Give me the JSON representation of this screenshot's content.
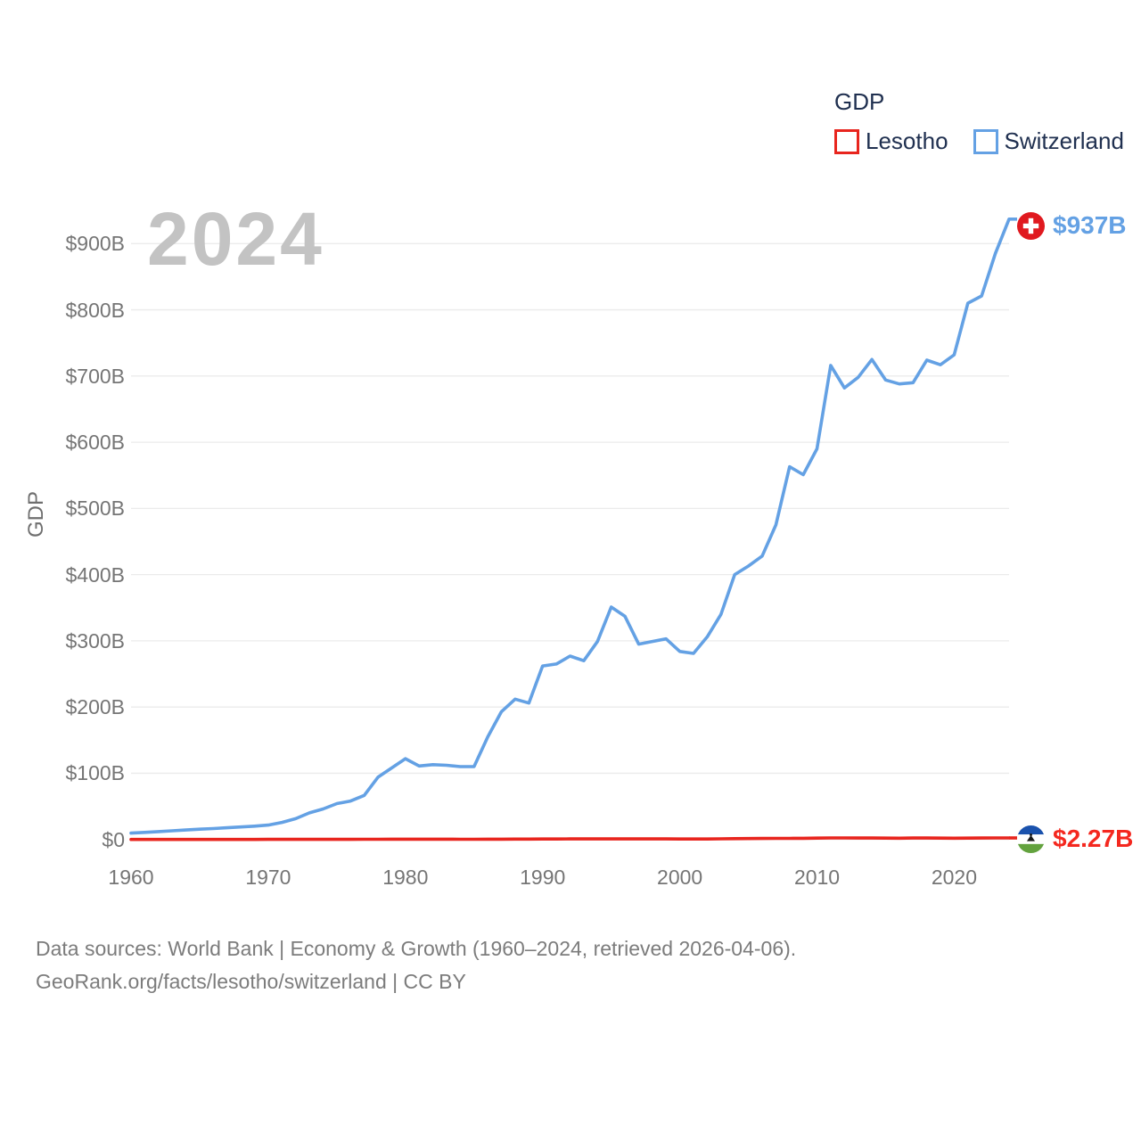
{
  "legend": {
    "title": "GDP",
    "items": [
      {
        "label": "Lesotho",
        "color": "#e8251e"
      },
      {
        "label": "Switzerland",
        "color": "#64a1e4"
      }
    ]
  },
  "watermark_year": "2024",
  "y_axis": {
    "title": "GDP"
  },
  "series_end_labels": {
    "switzerland": "$937B",
    "lesotho": "$2.27B"
  },
  "footer": {
    "line1": "Data sources: World Bank | Economy & Growth (1960–2024, retrieved 2026-04-06).",
    "line2": "GeoRank.org/facts/lesotho/switzerland | CC BY"
  },
  "colors": {
    "switzerland_line": "#64a1e4",
    "lesotho_line": "#e8251e",
    "switzerland_label": "#64a1e4",
    "lesotho_label": "#f4281f",
    "grid": "#ebebeb",
    "axis_text": "#757575",
    "legend_text": "#203050",
    "watermark": "#c3c3c3",
    "footer_text": "#7c7c7c"
  },
  "chart_data": {
    "type": "line",
    "title": "GDP",
    "ylabel": "GDP",
    "x_range": [
      1960,
      2024
    ],
    "ylim_billions": [
      0,
      950
    ],
    "grid": true,
    "legend_position": "top-right",
    "x_ticks": [
      1960,
      1970,
      1980,
      1990,
      2000,
      2010,
      2020
    ],
    "y_ticks": [
      0,
      100,
      200,
      300,
      400,
      500,
      600,
      700,
      800,
      900
    ],
    "y_tick_labels": [
      "$0",
      "$100B",
      "$200B",
      "$300B",
      "$400B",
      "$500B",
      "$600B",
      "$700B",
      "$800B",
      "$900B"
    ],
    "x": [
      1960,
      1961,
      1962,
      1963,
      1964,
      1965,
      1966,
      1967,
      1968,
      1969,
      1970,
      1971,
      1972,
      1973,
      1974,
      1975,
      1976,
      1977,
      1978,
      1979,
      1980,
      1981,
      1982,
      1983,
      1984,
      1985,
      1986,
      1987,
      1988,
      1989,
      1990,
      1991,
      1992,
      1993,
      1994,
      1995,
      1996,
      1997,
      1998,
      1999,
      2000,
      2001,
      2002,
      2003,
      2004,
      2005,
      2006,
      2007,
      2008,
      2009,
      2010,
      2011,
      2012,
      2013,
      2014,
      2015,
      2016,
      2017,
      2018,
      2019,
      2020,
      2021,
      2022,
      2023,
      2024
    ],
    "series": [
      {
        "name": "Lesotho",
        "color": "#e8251e",
        "end_label": "$2.27B",
        "values_billions": [
          0.03,
          0.03,
          0.04,
          0.04,
          0.04,
          0.05,
          0.05,
          0.06,
          0.06,
          0.06,
          0.07,
          0.08,
          0.09,
          0.11,
          0.14,
          0.16,
          0.18,
          0.22,
          0.28,
          0.35,
          0.43,
          0.41,
          0.37,
          0.35,
          0.31,
          0.29,
          0.34,
          0.43,
          0.5,
          0.54,
          0.62,
          0.69,
          0.77,
          0.76,
          0.82,
          0.87,
          0.84,
          0.85,
          0.76,
          0.77,
          0.73,
          0.66,
          0.64,
          0.93,
          1.18,
          1.37,
          1.43,
          1.6,
          1.58,
          1.74,
          2.0,
          2.23,
          2.24,
          2.15,
          2.22,
          2.02,
          1.88,
          2.1,
          2.16,
          2.05,
          1.84,
          2.06,
          2.11,
          2.23,
          2.27
        ]
      },
      {
        "name": "Switzerland",
        "color": "#64a1e4",
        "end_label": "$937B",
        "values_billions": [
          9.5,
          10.7,
          11.9,
          13,
          14.3,
          15.5,
          16.4,
          17.6,
          18.8,
          20.1,
          21.7,
          25.7,
          31.4,
          40.1,
          46.1,
          54.1,
          58.1,
          66.5,
          94,
          108,
          122,
          111,
          113,
          112,
          110,
          110,
          155,
          193,
          212,
          206,
          262,
          265,
          277,
          270,
          299,
          351,
          337,
          295,
          299,
          303,
          284,
          281,
          306,
          340,
          400,
          413,
          428,
          475,
          563,
          551,
          590,
          716,
          682,
          698,
          725,
          694,
          688,
          690,
          724,
          717,
          732,
          810,
          821,
          885,
          937
        ]
      }
    ]
  }
}
